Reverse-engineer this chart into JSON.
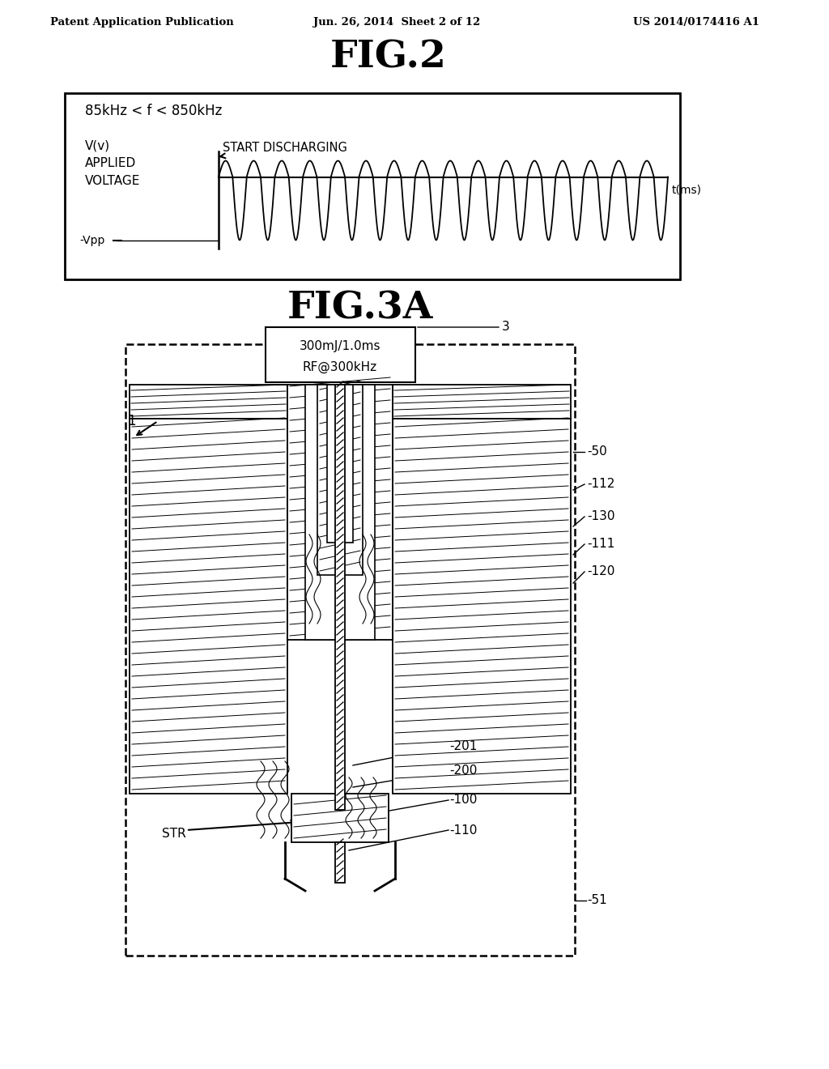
{
  "header_left": "Patent Application Publication",
  "header_center": "Jun. 26, 2014  Sheet 2 of 12",
  "header_right": "US 2014/0174416 A1",
  "fig2_title": "FIG.2",
  "fig2_freq_label": "85kHz < f < 850kHz",
  "fig2_ylabel1": "V(v)",
  "fig2_ylabel2": "APPLIED",
  "fig2_ylabel3": "VOLTAGE",
  "fig2_start_label": "START DISCHARGING",
  "fig2_vpp_label": "-Vpp",
  "fig2_xlabel": "t(ms)",
  "fig3a_title": "FIG.3A",
  "fig3a_box_line1": "300mJ/1.0ms",
  "fig3a_box_line2": "RF@300kHz",
  "background_color": "#ffffff",
  "line_color": "#000000"
}
